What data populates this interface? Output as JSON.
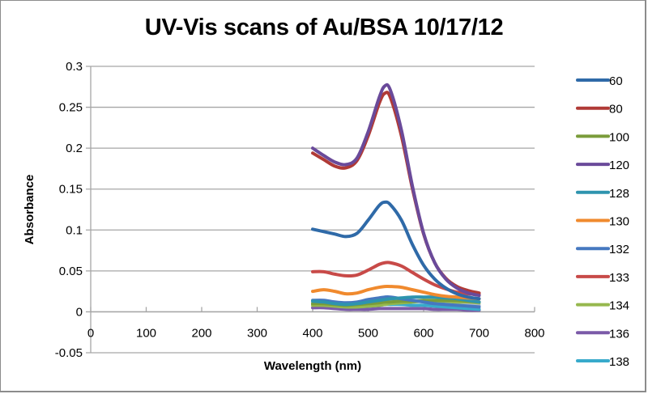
{
  "chart_data": {
    "type": "line",
    "title": "UV-Vis scans of Au/BSA 10/17/12",
    "xlabel": "Wavelength (nm)",
    "ylabel": "Absorbance",
    "xlim": [
      0,
      800
    ],
    "ylim": [
      -0.05,
      0.3
    ],
    "x_ticks": [
      "0",
      "100",
      "200",
      "300",
      "400",
      "500",
      "600",
      "700",
      "800"
    ],
    "y_ticks": [
      "0.3",
      "0.25",
      "0.2",
      "0.15",
      "0.1",
      "0.05",
      "0",
      "-0.05"
    ],
    "grid": "horizontal major gridlines",
    "legend_position": "right",
    "x": [
      400,
      420,
      440,
      460,
      480,
      500,
      520,
      530,
      540,
      560,
      580,
      600,
      620,
      640,
      660,
      680,
      700
    ],
    "series": [
      {
        "name": "60",
        "color": "#2f6aa8",
        "values": [
          0.101,
          0.098,
          0.095,
          0.092,
          0.096,
          0.112,
          0.13,
          0.134,
          0.131,
          0.112,
          0.082,
          0.057,
          0.04,
          0.029,
          0.022,
          0.018,
          0.016
        ]
      },
      {
        "name": "80",
        "color": "#b03a36",
        "values": [
          0.194,
          0.186,
          0.178,
          0.176,
          0.185,
          0.215,
          0.255,
          0.267,
          0.262,
          0.215,
          0.15,
          0.095,
          0.06,
          0.041,
          0.031,
          0.026,
          0.023
        ]
      },
      {
        "name": "100",
        "color": "#7a9c3a",
        "values": [
          0.01,
          0.01,
          0.009,
          0.008,
          0.009,
          0.01,
          0.011,
          0.012,
          0.012,
          0.013,
          0.013,
          0.014,
          0.014,
          0.014,
          0.014,
          0.013,
          0.012
        ]
      },
      {
        "name": "120",
        "color": "#6a4a9a",
        "values": [
          0.2,
          0.191,
          0.183,
          0.18,
          0.188,
          0.22,
          0.262,
          0.276,
          0.271,
          0.222,
          0.153,
          0.096,
          0.06,
          0.04,
          0.029,
          0.023,
          0.02
        ]
      },
      {
        "name": "128",
        "color": "#2e94ae",
        "values": [
          0.013,
          0.012,
          0.01,
          0.009,
          0.01,
          0.012,
          0.014,
          0.015,
          0.016,
          0.017,
          0.018,
          0.018,
          0.018,
          0.017,
          0.016,
          0.014,
          0.012
        ]
      },
      {
        "name": "130",
        "color": "#f08a2e",
        "values": [
          0.025,
          0.027,
          0.025,
          0.022,
          0.023,
          0.027,
          0.03,
          0.031,
          0.031,
          0.03,
          0.027,
          0.024,
          0.021,
          0.019,
          0.018,
          0.017,
          0.016
        ]
      },
      {
        "name": "132",
        "color": "#4678c0",
        "values": [
          0.014,
          0.014,
          0.012,
          0.011,
          0.012,
          0.015,
          0.017,
          0.018,
          0.018,
          0.016,
          0.014,
          0.012,
          0.01,
          0.009,
          0.008,
          0.007,
          0.006
        ]
      },
      {
        "name": "133",
        "color": "#c84a48",
        "values": [
          0.049,
          0.049,
          0.046,
          0.044,
          0.045,
          0.051,
          0.058,
          0.06,
          0.06,
          0.056,
          0.048,
          0.04,
          0.033,
          0.028,
          0.024,
          0.022,
          0.021
        ]
      },
      {
        "name": "134",
        "color": "#96b84e",
        "values": [
          0.008,
          0.008,
          0.007,
          0.006,
          0.006,
          0.007,
          0.008,
          0.009,
          0.01,
          0.011,
          0.012,
          0.013,
          0.013,
          0.013,
          0.012,
          0.012,
          0.011
        ]
      },
      {
        "name": "136",
        "color": "#7b5aa8",
        "values": [
          0.005,
          0.005,
          0.004,
          0.003,
          0.003,
          0.003,
          0.004,
          0.004,
          0.004,
          0.004,
          0.004,
          0.004,
          0.003,
          0.003,
          0.003,
          0.002,
          0.002
        ]
      },
      {
        "name": "138",
        "color": "#38aacb",
        "values": [
          0.009,
          0.009,
          0.007,
          0.006,
          0.006,
          0.007,
          0.008,
          0.009,
          0.009,
          0.009,
          0.008,
          0.008,
          0.007,
          0.006,
          0.005,
          0.004,
          0.003
        ]
      },
      {
        "name": "",
        "color": "#a9b8d2",
        "values": [
          0.011,
          0.011,
          0.01,
          0.009,
          0.01,
          0.011,
          0.012,
          0.013,
          0.013,
          0.013,
          0.013,
          0.013,
          0.012,
          0.011,
          0.01,
          0.009,
          0.008
        ]
      }
    ]
  },
  "legend": {
    "items": [
      {
        "label": "60",
        "color": "#2f6aa8"
      },
      {
        "label": "80",
        "color": "#b03a36"
      },
      {
        "label": "100",
        "color": "#7a9c3a"
      },
      {
        "label": "120",
        "color": "#6a4a9a"
      },
      {
        "label": "128",
        "color": "#2e94ae"
      },
      {
        "label": "130",
        "color": "#f08a2e"
      },
      {
        "label": "132",
        "color": "#4678c0"
      },
      {
        "label": "133",
        "color": "#c84a48"
      },
      {
        "label": "134",
        "color": "#96b84e"
      },
      {
        "label": "136",
        "color": "#7b5aa8"
      },
      {
        "label": "138",
        "color": "#38aacb"
      }
    ]
  },
  "colors": {
    "gridline": "#a6a6a6",
    "axis": "#a6a6a6",
    "frame": "#8c8c8c"
  }
}
